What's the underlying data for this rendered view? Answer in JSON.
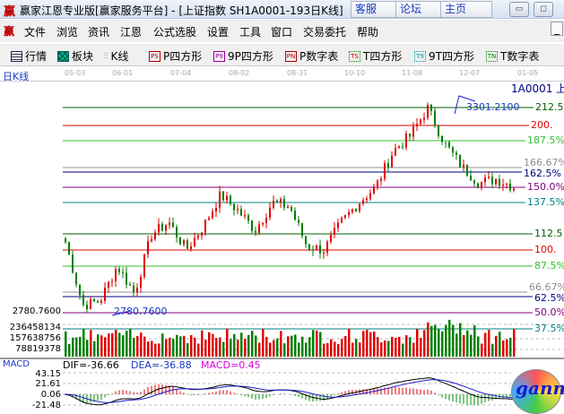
{
  "window": {
    "logo": "赢",
    "title": "赢家江恩专业版[赢家服务平台] - [上证指数  SH1A0001-193日K线]",
    "buttons": [
      "客服",
      "论坛",
      "主页"
    ],
    "minimize": "▭",
    "restore": "◻"
  },
  "menu": {
    "logo": "赢",
    "items": [
      "文件",
      "浏览",
      "资讯",
      "江恩",
      "公式选股",
      "设置",
      "工具",
      "窗口",
      "交易委托",
      "帮助"
    ],
    "close": "_"
  },
  "toolbar": {
    "items": [
      {
        "label": "行情",
        "icon": "quote-grid-icon",
        "badge": ""
      },
      {
        "label": "板块",
        "icon": "sector-blocks-icon",
        "badge": ""
      },
      {
        "label": "K线",
        "icon": "candlestick-icon",
        "badge": ""
      },
      {
        "label": "P四方形",
        "icon": "ps-icon",
        "badge": "PS"
      },
      {
        "label": "9P四方形",
        "icon": "p9-icon",
        "badge": "P9"
      },
      {
        "label": "P数字表",
        "icon": "pn-icon",
        "badge": "PN"
      },
      {
        "label": "T四方形",
        "icon": "ts-icon",
        "badge": "TS"
      },
      {
        "label": "9T四方形",
        "icon": "t9-icon",
        "badge": "T9"
      },
      {
        "label": "T数字表",
        "icon": "tn-icon",
        "badge": "TN"
      }
    ]
  },
  "chart": {
    "period_label": "日K线",
    "symbol": "1A0001",
    "symbol_suffix": "上",
    "dates": [
      "05-03",
      "06-01",
      "07-04",
      "08-02",
      "08-31",
      "10-10",
      "11-08",
      "12-07",
      "01-05"
    ],
    "high_label": "3301.2100",
    "low_label": "2780.7600",
    "low_axis": "2780.7600",
    "gann_levels": [
      {
        "label": "212.5",
        "color": "#006000"
      },
      {
        "label": "200.",
        "color": "#e00000"
      },
      {
        "label": "187.5%",
        "color": "#30c030"
      },
      {
        "label": "166.67%",
        "color": "#909090"
      },
      {
        "label": "162.5%",
        "color": "#000080"
      },
      {
        "label": "150.0%",
        "color": "#800080"
      },
      {
        "label": "137.5%",
        "color": "#008080"
      },
      {
        "label": "112.5",
        "color": "#006000"
      },
      {
        "label": "100.",
        "color": "#e00000"
      },
      {
        "label": "87.5%",
        "color": "#30c030"
      },
      {
        "label": "66.67%",
        "color": "#909090"
      },
      {
        "label": "62.5%",
        "color": "#000080"
      },
      {
        "label": "50.0%",
        "color": "#800080"
      },
      {
        "label": "37.5%",
        "color": "#008080"
      }
    ],
    "up_color": "#e00000",
    "down_color": "#008000"
  },
  "volume": {
    "axis": [
      "236458134",
      "157638756",
      "78819378"
    ]
  },
  "macd": {
    "title": "MACD",
    "dif": "DIF=-36.66",
    "dea": "DEA=-36.88",
    "macd": "MACD=0.45",
    "axis": [
      "43.15",
      "21.61",
      "0.06",
      "-21.48"
    ]
  },
  "chart_data": {
    "type": "candlestick",
    "close_keypoints": [
      2960,
      2800,
      2810,
      2900,
      2830,
      2980,
      3010,
      2940,
      3000,
      3080,
      3040,
      2990,
      3060,
      3050,
      2950,
      2940,
      3010,
      3060,
      3100,
      3190,
      3230,
      3300,
      3210,
      3150,
      3110,
      3120,
      3100
    ],
    "low": 2780.76,
    "high": 3301.21
  }
}
